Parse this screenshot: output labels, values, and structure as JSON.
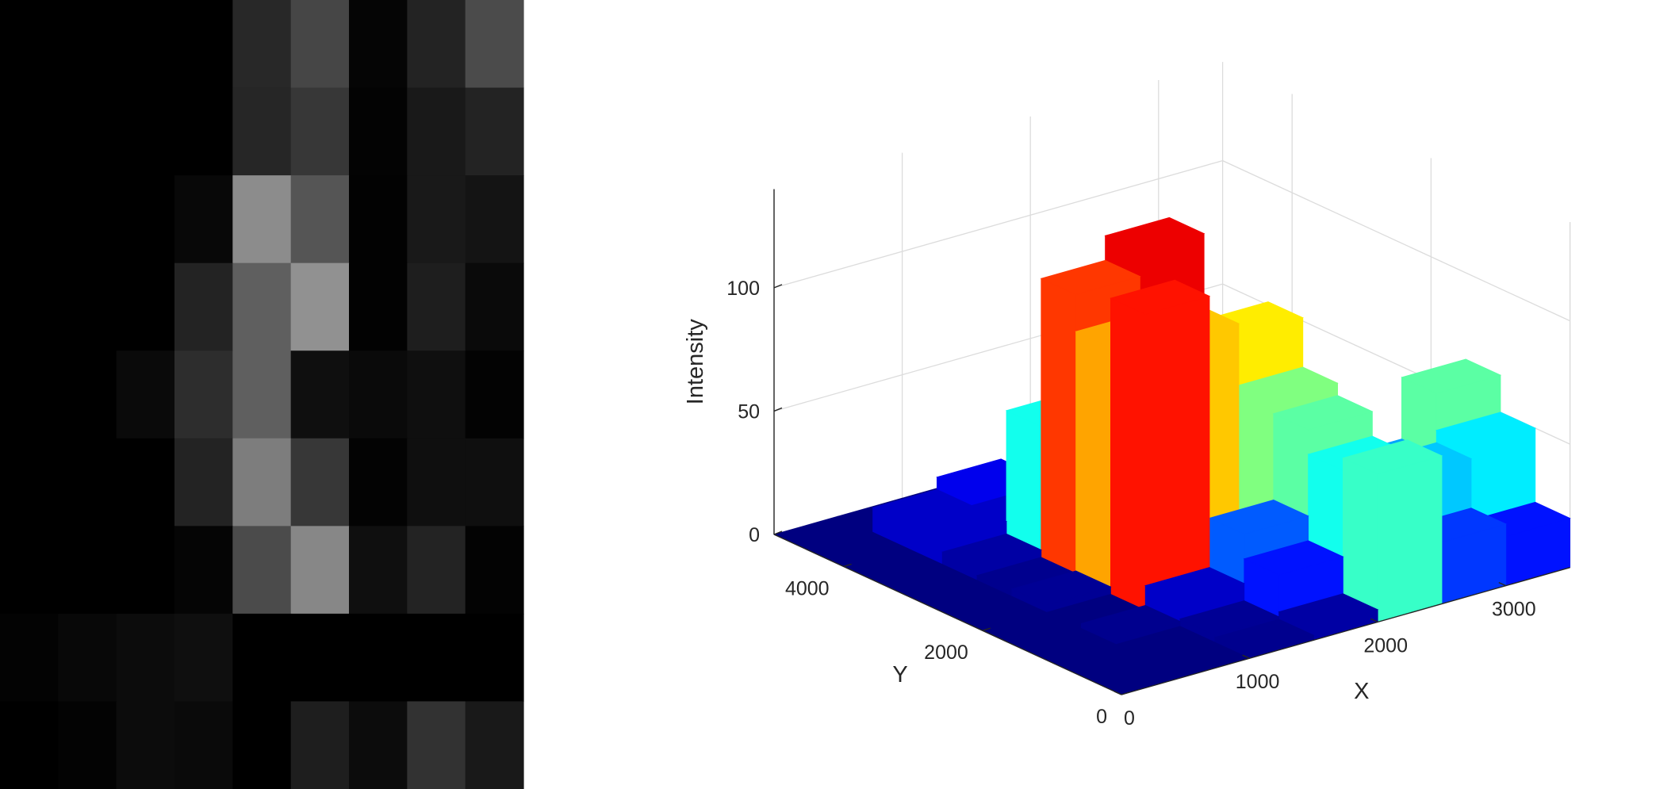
{
  "chart_data": [
    {
      "type": "image",
      "values": [
        [
          0,
          0,
          0,
          0,
          40,
          70,
          5,
          35,
          75
        ],
        [
          0,
          0,
          0,
          0,
          38,
          55,
          3,
          25,
          35
        ],
        [
          0,
          0,
          0,
          8,
          140,
          85,
          2,
          25,
          20
        ],
        [
          0,
          0,
          0,
          35,
          95,
          145,
          2,
          30,
          10
        ],
        [
          0,
          0,
          10,
          45,
          95,
          15,
          10,
          15,
          3
        ],
        [
          0,
          0,
          0,
          35,
          125,
          55,
          3,
          15,
          15
        ],
        [
          0,
          0,
          0,
          5,
          75,
          135,
          15,
          35,
          3
        ],
        [
          3,
          8,
          12,
          15,
          0,
          0,
          0,
          0,
          0
        ],
        [
          0,
          3,
          12,
          10,
          0,
          30,
          12,
          50,
          25
        ]
      ]
    },
    {
      "type": "bar3d",
      "xlabel": "X",
      "ylabel": "Y",
      "zlabel": "Intensity",
      "xlim": [
        0,
        3500
      ],
      "ylim": [
        0,
        5000
      ],
      "zlim": [
        0,
        140
      ],
      "xticks": [
        0,
        1000,
        2000,
        3000
      ],
      "yticks": [
        0,
        2000,
        4000
      ],
      "zticks": [
        0,
        50,
        100
      ],
      "grid": true,
      "values": [
        [
          0,
          0,
          2,
          5,
          60,
          25,
          20
        ],
        [
          0,
          0,
          3,
          20,
          55,
          45,
          50
        ],
        [
          0,
          2,
          10,
          30,
          65,
          40,
          65
        ],
        [
          0,
          0,
          120,
          10,
          70,
          20,
          5
        ],
        [
          0,
          3,
          100,
          95,
          90,
          15,
          3
        ],
        [
          0,
          2,
          115,
          125,
          30,
          5,
          2
        ],
        [
          0,
          5,
          55,
          70,
          8,
          3,
          0
        ],
        [
          0,
          10,
          10,
          5,
          3,
          0,
          0
        ],
        [
          0,
          10,
          15,
          8,
          0,
          0,
          0
        ],
        [
          0,
          0,
          0,
          0,
          0,
          0,
          0
        ]
      ]
    }
  ]
}
